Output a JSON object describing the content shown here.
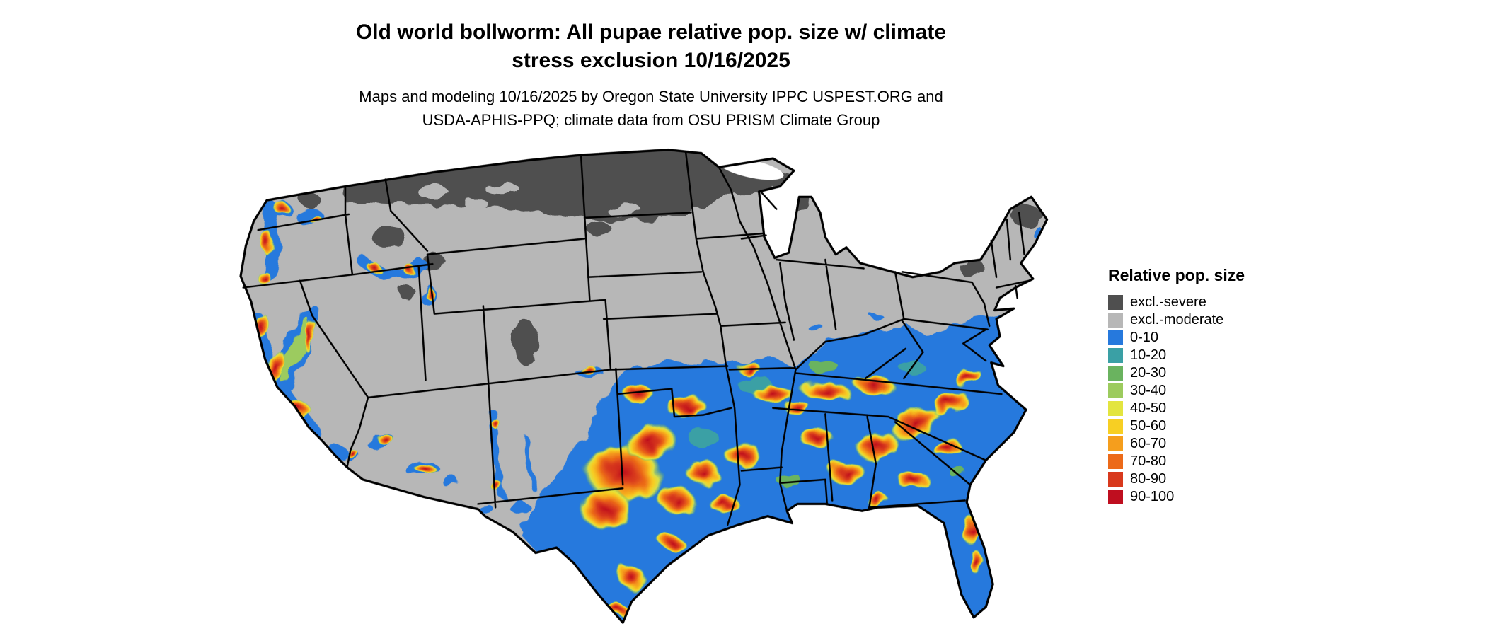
{
  "title": {
    "line1": "Old world bollworm: All pupae relative pop. size w/ climate",
    "line2": "stress exclusion 10/16/2025"
  },
  "subtitle": {
    "line1": "Maps and modeling 10/16/2025 by Oregon State University IPPC USPEST.ORG and",
    "line2": "USDA-APHIS-PPQ; climate data from OSU PRISM Climate Group"
  },
  "legend": {
    "title": "Relative pop. size",
    "items": [
      {
        "label": "excl.-severe",
        "color": "#4f4f4f"
      },
      {
        "label": "excl.-moderate",
        "color": "#b7b7b7"
      },
      {
        "label": "0-10",
        "color": "#2679dd"
      },
      {
        "label": "10-20",
        "color": "#3aa0a5"
      },
      {
        "label": "20-30",
        "color": "#6ab35f"
      },
      {
        "label": "30-40",
        "color": "#9ccb5e"
      },
      {
        "label": "40-50",
        "color": "#e3e53f"
      },
      {
        "label": "50-60",
        "color": "#f7cf23"
      },
      {
        "label": "60-70",
        "color": "#f59e1d"
      },
      {
        "label": "70-80",
        "color": "#ec6a19"
      },
      {
        "label": "80-90",
        "color": "#d8391d"
      },
      {
        "label": "90-100",
        "color": "#bf0e1f"
      }
    ]
  }
}
